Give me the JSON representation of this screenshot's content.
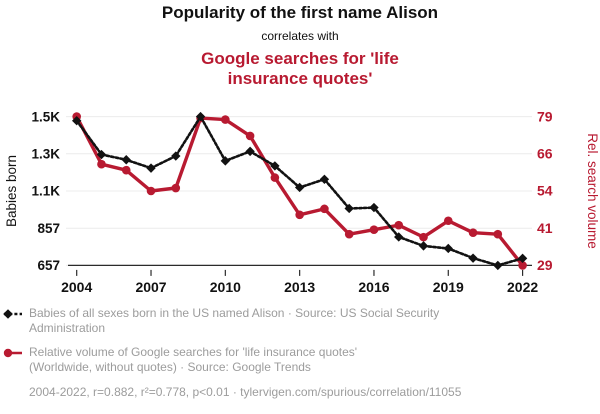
{
  "colors": {
    "accent_red": "#b81a31",
    "series_black": "#121212",
    "legend_gray": "#9c9c9c",
    "grid": "#ececec",
    "axis": "#2b2b2b"
  },
  "chart_data": {
    "type": "line",
    "title_black": "Popularity of the first name Alison",
    "title_connector": "correlates with",
    "title_red_lines": [
      "Google searches for 'life",
      "insurance quotes'"
    ],
    "x": [
      2004,
      2005,
      2006,
      2007,
      2008,
      2009,
      2010,
      2011,
      2012,
      2013,
      2014,
      2015,
      2016,
      2017,
      2018,
      2019,
      2020,
      2021,
      2022
    ],
    "x_ticks": [
      2004,
      2007,
      2010,
      2013,
      2016,
      2019,
      2022
    ],
    "series": [
      {
        "name": "Babies of all sexes born in the US named Alison",
        "axis": "left",
        "color": "#121212",
        "line_style": "dashed",
        "marker": "diamond",
        "values": [
          1435,
          1253,
          1225,
          1180,
          1245,
          1457,
          1219,
          1270,
          1192,
          1076,
          1120,
          963,
          968,
          810,
          762,
          748,
          696,
          657,
          695
        ]
      },
      {
        "name": "Relative volume of Google searches for 'life insurance quotes'",
        "axis": "right",
        "color": "#b81a31",
        "line_style": "solid",
        "marker": "circle",
        "values": [
          79,
          63,
          61,
          54,
          55,
          78.5,
          78,
          72.5,
          58.5,
          46,
          48,
          39.5,
          41,
          42.5,
          38.5,
          44,
          40,
          39.5,
          29
        ]
      }
    ],
    "left_axis": {
      "title": "Babies born",
      "tick_labels": [
        "1.5K",
        "1.3K",
        "1.1K",
        "857",
        "657"
      ],
      "range": [
        657,
        1457
      ],
      "color": "#121212"
    },
    "right_axis": {
      "title": "Rel. search volume",
      "tick_labels": [
        "79",
        "66",
        "54",
        "41",
        "29"
      ],
      "range": [
        29,
        79
      ],
      "color": "#b81a31"
    },
    "grid": "horizontal",
    "legend": {
      "items": [
        {
          "marker": "diamond-dashed",
          "color": "#121212",
          "lines": [
            "Babies of all sexes born in the US named Alison · Source: US Social Security",
            "Administration"
          ]
        },
        {
          "marker": "circle-solid",
          "color": "#b81a31",
          "lines": [
            "Relative volume of Google searches for 'life insurance quotes'",
            "(Worldwide, without quotes) · Source: Google Trends"
          ]
        }
      ],
      "footer": "2004-2022, r=0.882, r²=0.778, p<0.01 · tylervigen.com/spurious/correlation/11055"
    }
  }
}
